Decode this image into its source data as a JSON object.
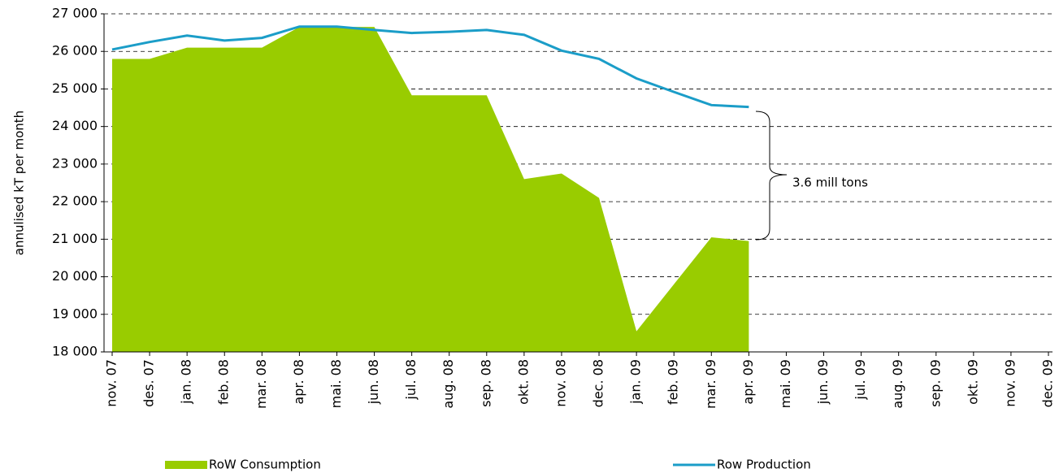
{
  "chart_data": {
    "type": "area-line",
    "y_label": "annulised kT per month",
    "annotation": "3.6 mill tons",
    "categories": [
      "nov. 07",
      "des. 07",
      "jan. 08",
      "feb. 08",
      "mar. 08",
      "apr. 08",
      "mai. 08",
      "jun. 08",
      "jul. 08",
      "aug. 08",
      "sep. 08",
      "okt. 08",
      "nov. 08",
      "dec. 08",
      "jan. 09",
      "feb. 09",
      "mar. 09",
      "apr. 09",
      "mai. 09",
      "jun. 09",
      "jul. 09",
      "aug. 09",
      "sep. 09",
      "okt. 09",
      "nov. 09",
      "dec. 09"
    ],
    "series": [
      {
        "name": "RoW Consumption",
        "kind": "area",
        "color": "#99cc00",
        "values": [
          25800,
          25800,
          26100,
          26100,
          26100,
          26650,
          26650,
          26650,
          24830,
          24830,
          24830,
          22600,
          22750,
          22100,
          18550,
          19800,
          21050,
          20950,
          null,
          null,
          null,
          null,
          null,
          null,
          null,
          null
        ]
      },
      {
        "name": "Row Production",
        "kind": "line",
        "color": "#1b9dc8",
        "values": [
          26050,
          26250,
          26420,
          26290,
          26360,
          26660,
          26660,
          26570,
          26490,
          26520,
          26570,
          26440,
          26020,
          25800,
          25280,
          24920,
          24570,
          24520,
          null,
          null,
          null,
          null,
          null,
          null,
          null,
          null
        ]
      }
    ],
    "ylim": [
      18000,
      27000
    ],
    "yticks": [
      {
        "value": 18000,
        "label": "18 000"
      },
      {
        "value": 19000,
        "label": "19 000"
      },
      {
        "value": 20000,
        "label": "20 000"
      },
      {
        "value": 21000,
        "label": "21 000"
      },
      {
        "value": 22000,
        "label": "22 000"
      },
      {
        "value": 23000,
        "label": "23 000"
      },
      {
        "value": 24000,
        "label": "24 000"
      },
      {
        "value": 25000,
        "label": "25 000"
      },
      {
        "value": 26000,
        "label": "26 000"
      },
      {
        "value": 27000,
        "label": "27 000"
      }
    ],
    "grid": true
  }
}
